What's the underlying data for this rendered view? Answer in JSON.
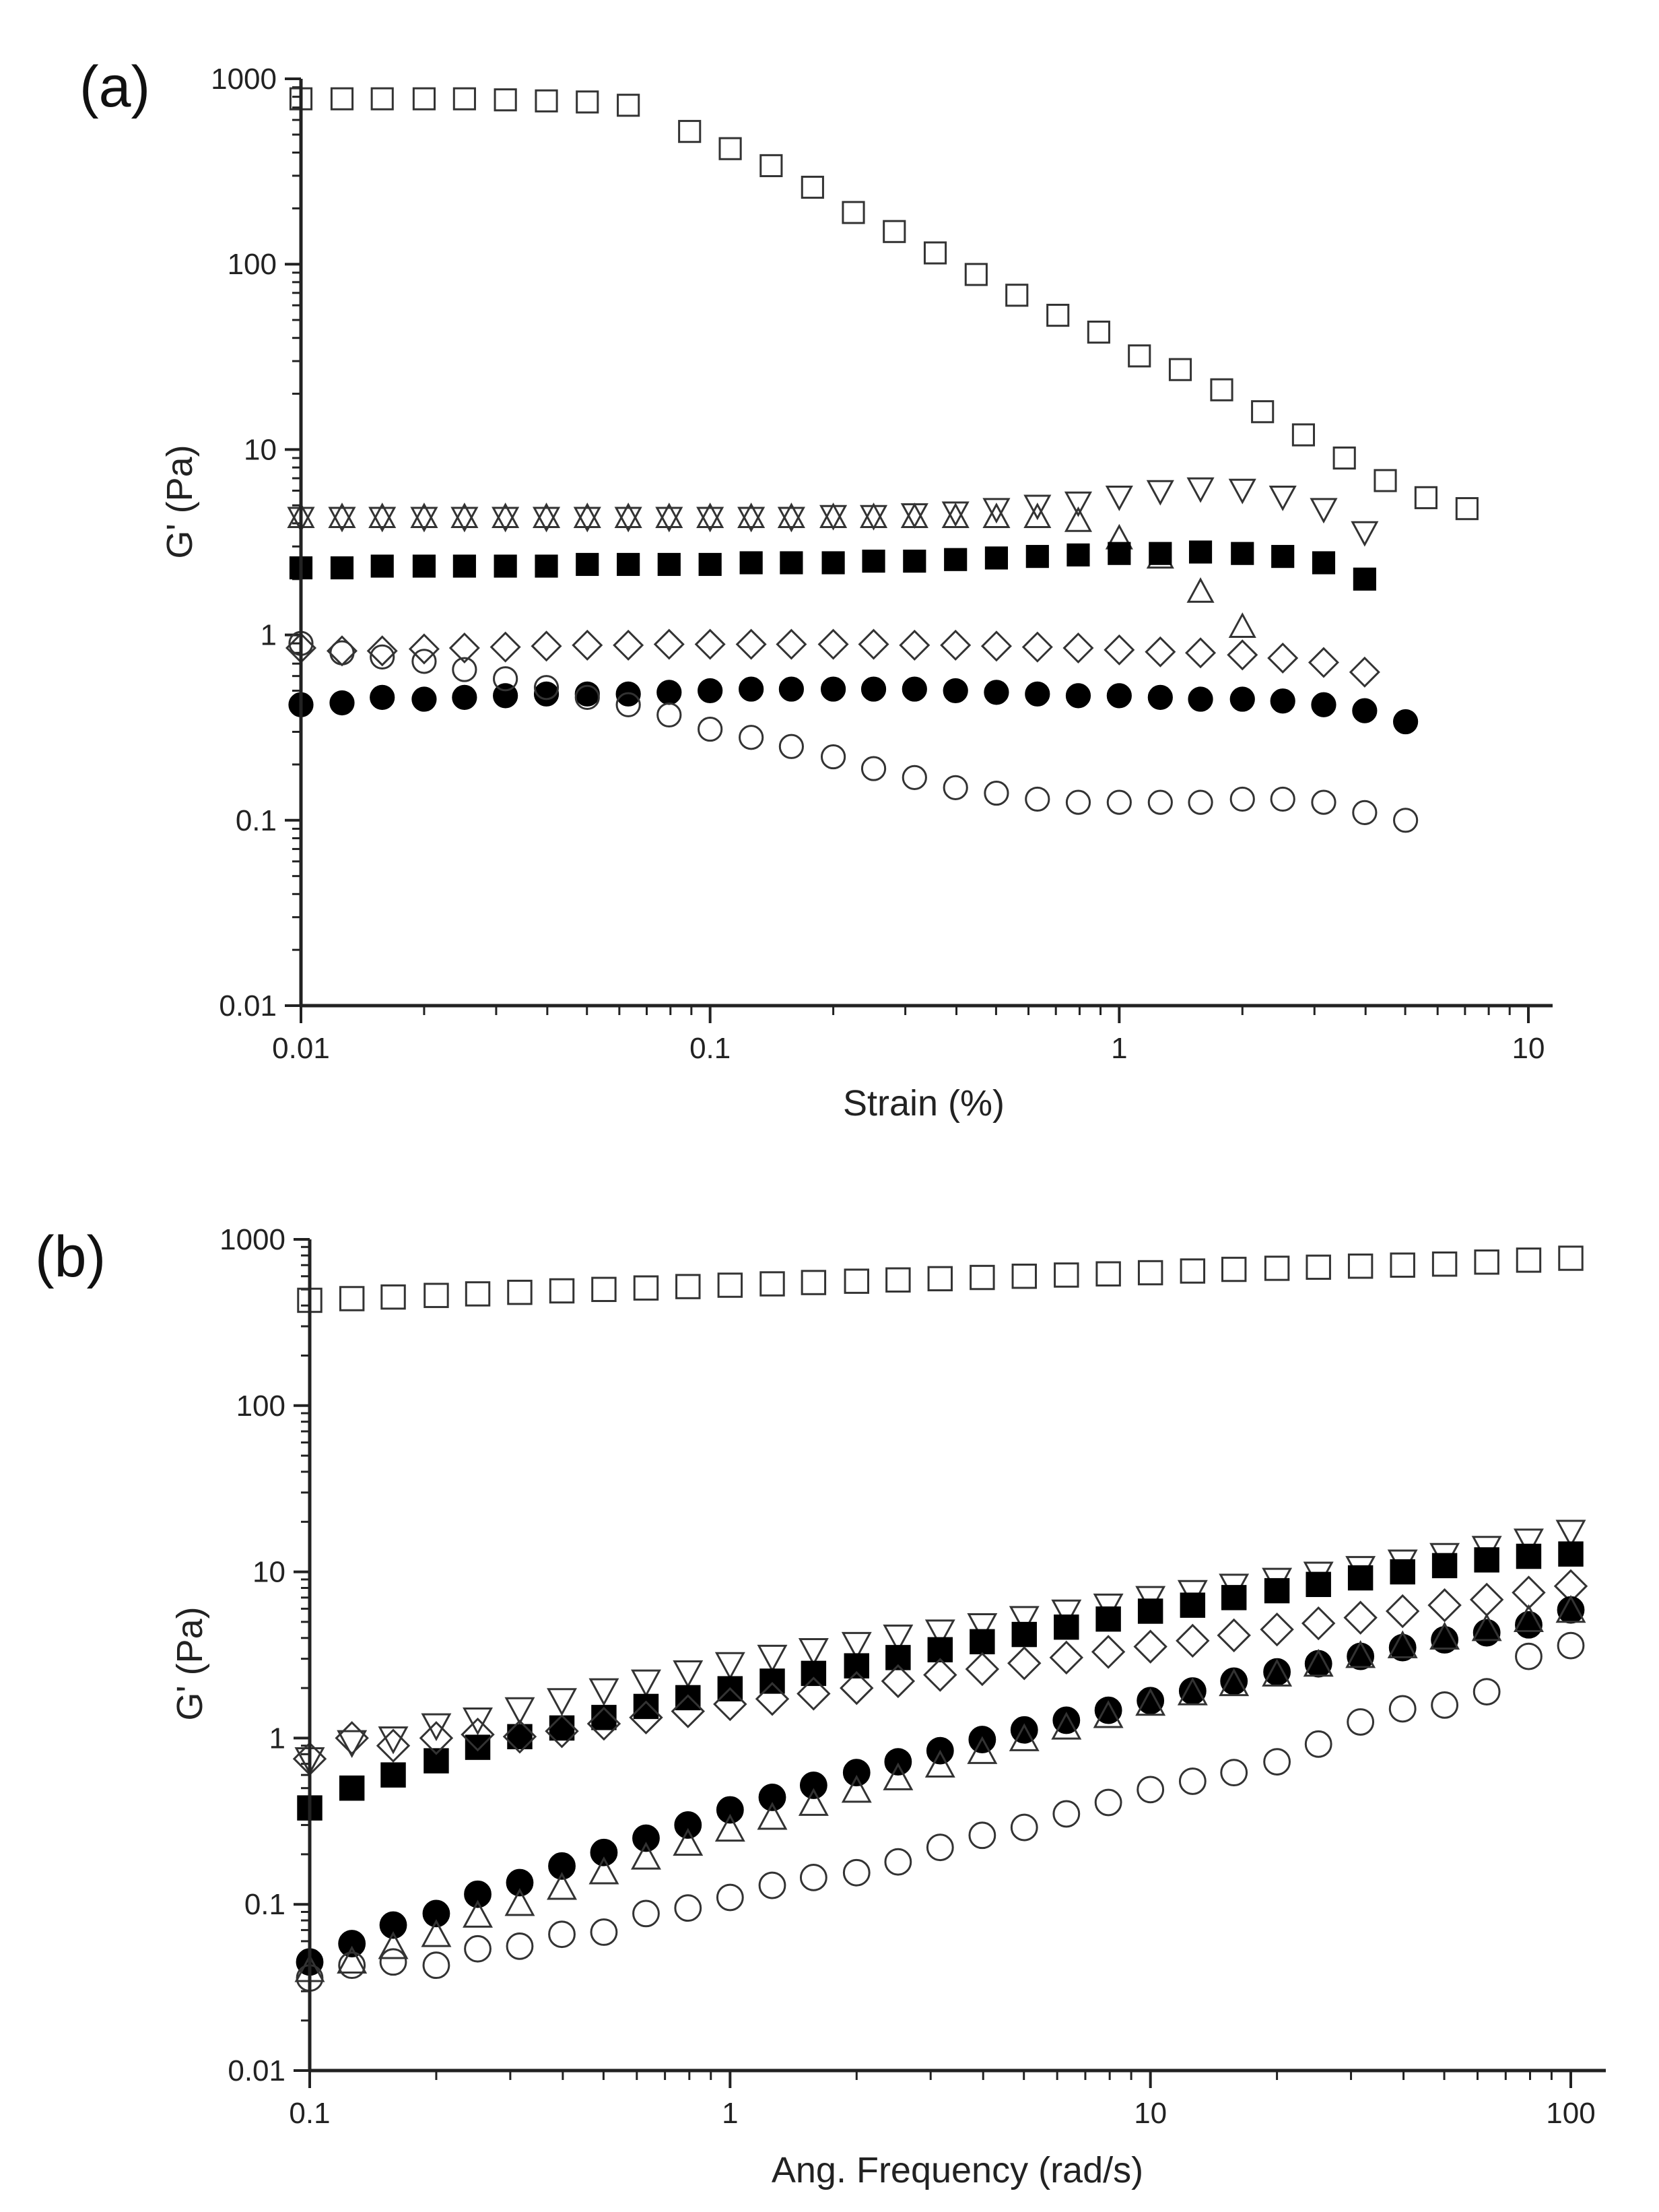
{
  "chart_data": [
    {
      "type": "scatter",
      "panel": "(a)",
      "xlabel": "Strain (%)",
      "ylabel": "G' (Pa)",
      "xscale": "log",
      "yscale": "log",
      "xlim": [
        0.01,
        10
      ],
      "ylim": [
        0.01,
        1000
      ],
      "xticks": [
        "0.01",
        "0.1",
        "1",
        "10"
      ],
      "yticks": [
        "0.01",
        "0.1",
        "1",
        "10",
        "100",
        "1000"
      ],
      "series": [
        {
          "name": "open-square",
          "marker": "square",
          "filled": false,
          "x": [
            0.01,
            0.0126,
            0.0158,
            0.02,
            0.0251,
            0.0316,
            0.0398,
            0.0501,
            0.0631,
            0.0891,
            0.112,
            0.141,
            0.178,
            0.224,
            0.282,
            0.355,
            0.447,
            0.562,
            0.708,
            0.891,
            1.12,
            1.41,
            1.78,
            2.24,
            2.82,
            3.55,
            4.47,
            5.62,
            7.08
          ],
          "y": [
            780,
            780,
            780,
            780,
            780,
            770,
            760,
            750,
            720,
            520,
            420,
            340,
            260,
            190,
            150,
            115,
            88,
            68,
            53,
            43,
            32,
            27,
            21,
            16,
            12,
            9,
            6.8,
            5.5,
            4.8
          ]
        },
        {
          "name": "open-triangle-down",
          "marker": "triangle-down",
          "filled": false,
          "x": [
            0.01,
            0.0126,
            0.0158,
            0.02,
            0.0251,
            0.0316,
            0.0398,
            0.0501,
            0.0631,
            0.0794,
            0.1,
            0.126,
            0.158,
            0.2,
            0.251,
            0.316,
            0.398,
            0.501,
            0.631,
            0.794,
            1,
            1.26,
            1.58,
            2,
            2.51,
            3.16,
            3.98
          ],
          "y": [
            4.3,
            4.3,
            4.3,
            4.3,
            4.3,
            4.3,
            4.3,
            4.3,
            4.3,
            4.3,
            4.3,
            4.3,
            4.3,
            4.4,
            4.4,
            4.5,
            4.6,
            4.8,
            5,
            5.2,
            5.6,
            6,
            6.2,
            6.1,
            5.6,
            4.8,
            3.6
          ]
        },
        {
          "name": "open-triangle-up",
          "marker": "triangle-up",
          "filled": false,
          "x": [
            0.01,
            0.0126,
            0.0158,
            0.02,
            0.0251,
            0.0316,
            0.0398,
            0.0501,
            0.0631,
            0.0794,
            0.1,
            0.126,
            0.158,
            0.2,
            0.251,
            0.316,
            0.398,
            0.501,
            0.631,
            0.794,
            1,
            1.26,
            1.58,
            2
          ],
          "y": [
            4.3,
            4.3,
            4.3,
            4.3,
            4.3,
            4.3,
            4.3,
            4.3,
            4.3,
            4.3,
            4.3,
            4.3,
            4.3,
            4.3,
            4.3,
            4.3,
            4.3,
            4.3,
            4.3,
            4.1,
            3.3,
            2.6,
            1.7,
            1.1
          ]
        },
        {
          "name": "filled-square",
          "marker": "square",
          "filled": true,
          "x": [
            0.01,
            0.0126,
            0.0158,
            0.02,
            0.0251,
            0.0316,
            0.0398,
            0.0501,
            0.0631,
            0.0794,
            0.1,
            0.126,
            0.158,
            0.2,
            0.251,
            0.316,
            0.398,
            0.501,
            0.631,
            0.794,
            1,
            1.26,
            1.58,
            2,
            2.51,
            3.16,
            3.98
          ],
          "y": [
            2.3,
            2.3,
            2.35,
            2.35,
            2.35,
            2.35,
            2.35,
            2.4,
            2.4,
            2.4,
            2.4,
            2.45,
            2.45,
            2.45,
            2.5,
            2.5,
            2.55,
            2.6,
            2.65,
            2.7,
            2.75,
            2.75,
            2.8,
            2.75,
            2.65,
            2.45,
            2.0
          ]
        },
        {
          "name": "open-diamond",
          "marker": "diamond",
          "filled": false,
          "x": [
            0.01,
            0.0126,
            0.0158,
            0.02,
            0.0251,
            0.0316,
            0.0398,
            0.0501,
            0.0631,
            0.0794,
            0.1,
            0.126,
            0.158,
            0.2,
            0.251,
            0.316,
            0.398,
            0.501,
            0.631,
            0.794,
            1,
            1.26,
            1.58,
            2,
            2.51,
            3.16,
            3.98
          ],
          "y": [
            0.85,
            0.82,
            0.82,
            0.84,
            0.85,
            0.86,
            0.87,
            0.88,
            0.88,
            0.89,
            0.89,
            0.89,
            0.89,
            0.89,
            0.89,
            0.88,
            0.88,
            0.87,
            0.86,
            0.85,
            0.83,
            0.81,
            0.8,
            0.78,
            0.75,
            0.71,
            0.63
          ]
        },
        {
          "name": "filled-circle",
          "marker": "circle",
          "filled": true,
          "x": [
            0.01,
            0.0126,
            0.0158,
            0.02,
            0.0251,
            0.0316,
            0.0398,
            0.0501,
            0.0631,
            0.0794,
            0.1,
            0.126,
            0.158,
            0.2,
            0.251,
            0.316,
            0.398,
            0.501,
            0.631,
            0.794,
            1,
            1.26,
            1.58,
            2,
            2.51,
            3.16,
            3.98,
            5.01
          ],
          "y": [
            0.42,
            0.43,
            0.46,
            0.45,
            0.46,
            0.47,
            0.48,
            0.48,
            0.48,
            0.49,
            0.5,
            0.51,
            0.51,
            0.51,
            0.51,
            0.51,
            0.5,
            0.49,
            0.48,
            0.47,
            0.47,
            0.46,
            0.45,
            0.45,
            0.44,
            0.42,
            0.39,
            0.34
          ]
        },
        {
          "name": "open-circle",
          "marker": "circle",
          "filled": false,
          "x": [
            0.01,
            0.0126,
            0.0158,
            0.02,
            0.0251,
            0.0316,
            0.0398,
            0.0501,
            0.0631,
            0.0794,
            0.1,
            0.126,
            0.158,
            0.2,
            0.251,
            0.316,
            0.398,
            0.501,
            0.631,
            0.794,
            1,
            1.26,
            1.58,
            2,
            2.51,
            3.16,
            3.98,
            5.01
          ],
          "y": [
            0.9,
            0.8,
            0.76,
            0.72,
            0.65,
            0.58,
            0.52,
            0.46,
            0.42,
            0.37,
            0.31,
            0.28,
            0.25,
            0.22,
            0.19,
            0.17,
            0.15,
            0.14,
            0.13,
            0.125,
            0.125,
            0.125,
            0.125,
            0.13,
            0.13,
            0.125,
            0.11,
            0.1
          ]
        }
      ]
    },
    {
      "type": "scatter",
      "panel": "(b)",
      "xlabel": "Ang. Frequency (rad/s)",
      "ylabel": "G' (Pa)",
      "xscale": "log",
      "yscale": "log",
      "xlim": [
        0.1,
        100
      ],
      "ylim": [
        0.01,
        1000
      ],
      "xticks": [
        "0.1",
        "1",
        "10",
        "100"
      ],
      "yticks": [
        "0.01",
        "0.1",
        "1",
        "10",
        "100",
        "1000"
      ],
      "series": [
        {
          "name": "open-square",
          "marker": "square",
          "filled": false,
          "x": [
            0.1,
            0.126,
            0.158,
            0.2,
            0.251,
            0.316,
            0.398,
            0.501,
            0.631,
            0.794,
            1,
            1.26,
            1.58,
            2,
            2.51,
            3.16,
            3.98,
            5.01,
            6.31,
            7.94,
            10,
            12.6,
            15.8,
            20,
            25.1,
            31.6,
            39.8,
            50.1,
            63.1,
            79.4,
            100
          ],
          "y": [
            430,
            440,
            450,
            460,
            470,
            480,
            490,
            500,
            510,
            520,
            530,
            540,
            550,
            560,
            570,
            580,
            590,
            600,
            610,
            620,
            630,
            645,
            660,
            670,
            680,
            690,
            700,
            710,
            730,
            750,
            770
          ]
        },
        {
          "name": "open-triangle-down",
          "marker": "triangle-down",
          "filled": false,
          "x": [
            0.1,
            0.126,
            0.158,
            0.2,
            0.251,
            0.316,
            0.398,
            0.501,
            0.631,
            0.794,
            1,
            1.26,
            1.58,
            2,
            2.51,
            3.16,
            3.98,
            5.01,
            6.31,
            7.94,
            10,
            12.6,
            15.8,
            20,
            25.1,
            31.6,
            39.8,
            50.1,
            63.1,
            79.4,
            100
          ],
          "y": [
            0.75,
            0.95,
            1.0,
            1.2,
            1.3,
            1.5,
            1.7,
            1.95,
            2.2,
            2.5,
            2.8,
            3.1,
            3.4,
            3.7,
            4.1,
            4.4,
            4.8,
            5.3,
            5.8,
            6.3,
            7.0,
            7.6,
            8.3,
            9.0,
            9.8,
            10.6,
            11.6,
            12.7,
            14,
            15.5,
            17.5
          ]
        },
        {
          "name": "filled-square",
          "marker": "square",
          "filled": true,
          "x": [
            0.1,
            0.126,
            0.158,
            0.2,
            0.251,
            0.316,
            0.398,
            0.501,
            0.631,
            0.794,
            1,
            1.26,
            1.58,
            2,
            2.51,
            3.16,
            3.98,
            5.01,
            6.31,
            7.94,
            10,
            12.6,
            15.8,
            20,
            25.1,
            31.6,
            39.8,
            50.1,
            63.1,
            79.4,
            100
          ],
          "y": [
            0.38,
            0.5,
            0.6,
            0.73,
            0.88,
            1.02,
            1.15,
            1.33,
            1.55,
            1.75,
            1.98,
            2.2,
            2.45,
            2.72,
            3.05,
            3.4,
            3.8,
            4.2,
            4.65,
            5.2,
            5.8,
            6.3,
            7.0,
            7.7,
            8.4,
            9.2,
            10.0,
            10.9,
            11.8,
            12.4,
            12.8
          ]
        },
        {
          "name": "open-diamond",
          "marker": "diamond",
          "filled": false,
          "x": [
            0.1,
            0.126,
            0.158,
            0.2,
            0.251,
            0.316,
            0.398,
            0.501,
            0.631,
            0.794,
            1,
            1.26,
            1.58,
            2,
            2.51,
            3.16,
            3.98,
            5.01,
            6.31,
            7.94,
            10,
            12.6,
            15.8,
            20,
            25.1,
            31.6,
            39.8,
            50.1,
            63.1,
            79.4,
            100
          ],
          "y": [
            0.75,
            1.0,
            0.9,
            1.0,
            1.05,
            1.02,
            1.1,
            1.22,
            1.33,
            1.45,
            1.6,
            1.72,
            1.85,
            2.0,
            2.2,
            2.4,
            2.6,
            2.82,
            3.05,
            3.3,
            3.55,
            3.85,
            4.15,
            4.5,
            4.9,
            5.3,
            5.8,
            6.3,
            6.8,
            7.5,
            8.2
          ]
        },
        {
          "name": "filled-circle",
          "marker": "circle",
          "filled": true,
          "x": [
            0.1,
            0.126,
            0.158,
            0.2,
            0.251,
            0.316,
            0.398,
            0.501,
            0.631,
            0.794,
            1,
            1.26,
            1.58,
            2,
            2.51,
            3.16,
            3.98,
            5.01,
            6.31,
            7.94,
            10,
            12.6,
            15.8,
            20,
            25.1,
            31.6,
            39.8,
            50.1,
            63.1,
            79.4,
            100
          ],
          "y": [
            0.045,
            0.058,
            0.075,
            0.088,
            0.115,
            0.135,
            0.17,
            0.205,
            0.25,
            0.3,
            0.37,
            0.44,
            0.52,
            0.62,
            0.72,
            0.84,
            0.98,
            1.12,
            1.28,
            1.47,
            1.68,
            1.92,
            2.2,
            2.5,
            2.8,
            3.1,
            3.5,
            3.9,
            4.3,
            4.8,
            5.9
          ]
        },
        {
          "name": "open-triangle-up",
          "marker": "triangle-up",
          "filled": false,
          "x": [
            0.1,
            0.126,
            0.158,
            0.2,
            0.251,
            0.316,
            0.398,
            0.501,
            0.631,
            0.794,
            1,
            1.26,
            1.58,
            2,
            2.51,
            3.16,
            3.98,
            5.01,
            6.31,
            7.94,
            10,
            12.6,
            15.8,
            20,
            25.1,
            31.6,
            39.8,
            50.1,
            63.1,
            79.4,
            100
          ],
          "y": [
            0.04,
            0.045,
            0.055,
            0.065,
            0.085,
            0.1,
            0.125,
            0.155,
            0.19,
            0.23,
            0.28,
            0.33,
            0.4,
            0.48,
            0.57,
            0.68,
            0.82,
            0.98,
            1.15,
            1.35,
            1.6,
            1.85,
            2.1,
            2.4,
            2.75,
            3.1,
            3.55,
            4.0,
            4.5,
            5.1,
            5.8
          ]
        },
        {
          "name": "open-circle",
          "marker": "circle",
          "filled": false,
          "x": [
            0.1,
            0.126,
            0.158,
            0.2,
            0.251,
            0.316,
            0.398,
            0.501,
            0.631,
            0.794,
            1,
            1.26,
            1.58,
            2,
            2.51,
            3.16,
            3.98,
            5.01,
            6.31,
            7.94,
            10,
            12.6,
            15.8,
            20,
            25.1,
            31.6,
            39.8,
            50.1,
            63.1,
            79.4,
            100
          ],
          "y": [
            0.036,
            0.043,
            0.045,
            0.043,
            0.054,
            0.056,
            0.066,
            0.068,
            0.088,
            0.095,
            0.11,
            0.13,
            0.145,
            0.155,
            0.18,
            0.22,
            0.26,
            0.29,
            0.35,
            0.41,
            0.49,
            0.55,
            0.62,
            0.72,
            0.92,
            1.25,
            1.5,
            1.58,
            1.9,
            3.1,
            3.6
          ]
        }
      ]
    }
  ]
}
